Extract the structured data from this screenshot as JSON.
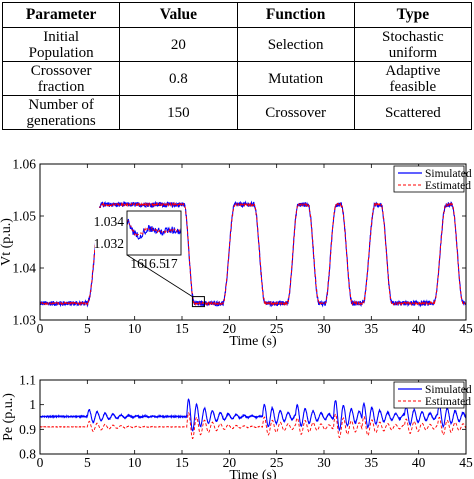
{
  "table": {
    "headers": [
      "Parameter",
      "Value",
      "Function",
      "Type"
    ],
    "rows": [
      {
        "parameter": [
          "Initial",
          "Population"
        ],
        "value": "20",
        "function": "Selection",
        "type": [
          "Stochastic",
          "uniform"
        ]
      },
      {
        "parameter": [
          "Crossover",
          "fraction"
        ],
        "value": "0.8",
        "function": "Mutation",
        "type": [
          "Adaptive",
          "feasible"
        ]
      },
      {
        "parameter": [
          "Number of",
          "generations"
        ],
        "value": "150",
        "function": "Crossover",
        "type": [
          "Scattered"
        ]
      }
    ]
  },
  "colors": {
    "simulated": "#0000ff",
    "estimated": "#ff0000",
    "axes": "#000000"
  },
  "chart_data": [
    {
      "type": "line",
      "xlabel": "Time (s)",
      "ylabel": "Vt (p.u.)",
      "xlim": [
        0,
        45
      ],
      "ylim": [
        1.03,
        1.06
      ],
      "xticks": [
        "0",
        "5",
        "10",
        "15",
        "20",
        "25",
        "30",
        "35",
        "40",
        "45"
      ],
      "yticks": [
        "1.03",
        "1.04",
        "1.05",
        "1.06"
      ],
      "legend": {
        "position": "top-right",
        "entries": [
          "Simulated",
          "Estimated"
        ]
      },
      "pulses": [
        {
          "rise_start": 5.0,
          "rise_end": 6.5,
          "fall_start": 15.2,
          "fall_end": 16.3
        },
        {
          "rise_start": 19.3,
          "rise_end": 20.6,
          "fall_start": 22.6,
          "fall_end": 23.8
        },
        {
          "rise_start": 26.1,
          "rise_end": 27.3,
          "fall_start": 28.3,
          "fall_end": 29.5
        },
        {
          "rise_start": 30.1,
          "rise_end": 31.3,
          "fall_start": 31.8,
          "fall_end": 33.0
        },
        {
          "rise_start": 34.1,
          "rise_end": 35.4,
          "fall_start": 36.0,
          "fall_end": 37.2
        },
        {
          "rise_start": 41.6,
          "rise_end": 42.9,
          "fall_start": 43.5,
          "fall_end": 44.7
        }
      ],
      "low_level": 1.0332,
      "high_level": 1.0522,
      "inset": {
        "xticks": [
          "16",
          "16.5",
          "17"
        ],
        "yticks": [
          "1.034",
          "1.032"
        ],
        "xlim": [
          15.7,
          17.3
        ],
        "ylim": [
          1.031,
          1.035
        ]
      },
      "series": [
        {
          "name": "Simulated",
          "style": "solid"
        },
        {
          "name": "Estimated",
          "style": "dashed"
        }
      ]
    },
    {
      "type": "line",
      "xlabel": "Time (s)",
      "ylabel": "Pe (p.u.)",
      "xlim": [
        0,
        45
      ],
      "ylim": [
        0.8,
        1.1
      ],
      "xticks": [
        "0",
        "5",
        "10",
        "15",
        "20",
        "25",
        "30",
        "35",
        "40",
        "45"
      ],
      "yticks": [
        "0.8",
        "0.9",
        "1",
        "1.1"
      ],
      "legend": {
        "position": "top-right",
        "entries": [
          "Simulated",
          "Estimated"
        ]
      },
      "baseline": {
        "Simulated": 0.952,
        "Estimated": 0.91
      },
      "event_times": [
        5.0,
        15.5,
        23.5,
        27.0,
        31.0,
        34.0,
        38.5,
        42.0,
        45.0
      ],
      "series": [
        {
          "name": "Simulated",
          "style": "solid"
        },
        {
          "name": "Estimated",
          "style": "dashed"
        }
      ]
    }
  ]
}
